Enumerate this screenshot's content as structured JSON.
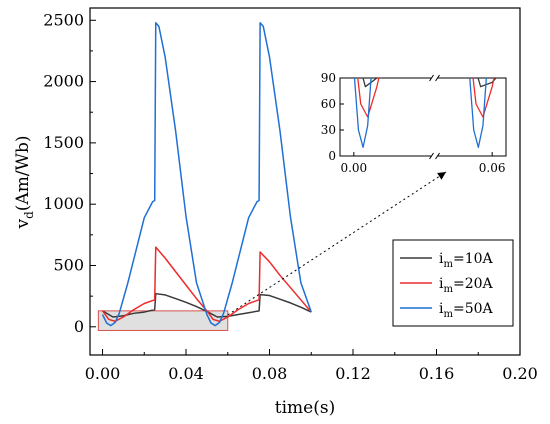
{
  "chart_data": {
    "type": "line",
    "xlabel": "time(s)",
    "ylabel_main": "v",
    "ylabel_sub": "d",
    "ylabel_rest": "(Am/Wb)",
    "xlim": [
      -0.006,
      0.2
    ],
    "ylim": [
      -230,
      2600
    ],
    "xticks": [
      0.0,
      0.04,
      0.08,
      0.12,
      0.16,
      0.2
    ],
    "xtick_labels": [
      "0.00",
      "0.04",
      "0.08",
      "0.12",
      "0.16",
      "0.20"
    ],
    "yticks": [
      0,
      500,
      1000,
      1500,
      2000,
      2500
    ],
    "ytick_labels": [
      "0",
      "500",
      "1000",
      "1500",
      "2000",
      "2500"
    ],
    "grid": false,
    "legend_position": "lower-right",
    "series": [
      {
        "legend_prefix": "i",
        "legend_sub": "m",
        "legend_value": "=10A",
        "color": "#3a3a3a",
        "x": [
          0,
          0.005,
          0.01,
          0.015,
          0.02,
          0.025,
          0.0255,
          0.03,
          0.035,
          0.04,
          0.045,
          0.05,
          0.055,
          0.06,
          0.065,
          0.07,
          0.075,
          0.0755,
          0.08,
          0.085,
          0.09,
          0.095,
          0.1
        ],
        "y": [
          130,
          80,
          90,
          110,
          120,
          140,
          270,
          260,
          230,
          200,
          165,
          125,
          80,
          85,
          100,
          115,
          130,
          262,
          255,
          225,
          195,
          160,
          120
        ]
      },
      {
        "legend_prefix": "i",
        "legend_sub": "m",
        "legend_value": "=20A",
        "color": "#ee2b2b",
        "x": [
          0,
          0.003,
          0.006,
          0.01,
          0.015,
          0.02,
          0.025,
          0.0255,
          0.03,
          0.035,
          0.04,
          0.045,
          0.05,
          0.053,
          0.056,
          0.06,
          0.065,
          0.07,
          0.075,
          0.0755,
          0.08,
          0.085,
          0.09,
          0.095,
          0.1
        ],
        "y": [
          130,
          60,
          45,
          80,
          140,
          190,
          220,
          650,
          560,
          450,
          340,
          230,
          130,
          60,
          45,
          80,
          140,
          190,
          220,
          610,
          530,
          420,
          320,
          220,
          120
        ]
      },
      {
        "legend_prefix": "i",
        "legend_sub": "m",
        "legend_value": "=50A",
        "color": "#1f6fd4",
        "x": [
          0,
          0.002,
          0.004,
          0.006,
          0.008,
          0.012,
          0.016,
          0.02,
          0.024,
          0.025,
          0.0255,
          0.027,
          0.03,
          0.035,
          0.04,
          0.045,
          0.05,
          0.052,
          0.054,
          0.056,
          0.058,
          0.062,
          0.066,
          0.07,
          0.074,
          0.075,
          0.0755,
          0.077,
          0.08,
          0.085,
          0.09,
          0.095,
          0.1
        ],
        "y": [
          100,
          30,
          10,
          35,
          110,
          350,
          620,
          890,
          1020,
          1030,
          2480,
          2450,
          2200,
          1600,
          900,
          360,
          100,
          30,
          10,
          35,
          110,
          350,
          620,
          890,
          1020,
          1030,
          2480,
          2450,
          2200,
          1600,
          900,
          360,
          120
        ]
      }
    ],
    "zoom_region": {
      "x": [
        -0.002,
        0.06
      ],
      "y": [
        -30,
        130
      ]
    },
    "inset": {
      "xlim": [
        -0.006,
        0.066
      ],
      "ylim": [
        0,
        90
      ],
      "yticks": [
        0,
        30,
        60,
        90
      ],
      "ytick_labels": [
        "0",
        "30",
        "60",
        "90"
      ],
      "xticks": [
        0.0,
        0.06
      ],
      "xtick_labels": [
        "0.00",
        "0.06"
      ],
      "axis_break_at": 0.035
    }
  }
}
